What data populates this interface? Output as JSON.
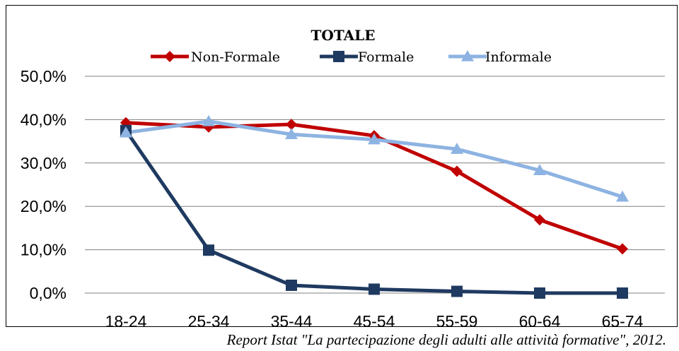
{
  "chart_data": {
    "type": "line",
    "title": "TOTALE",
    "categories": [
      "18-24",
      "25-34",
      "35-44",
      "45-54",
      "55-59",
      "60-64",
      "65-74"
    ],
    "yticks": [
      "0,0%",
      "10,0%",
      "20,0%",
      "30,0%",
      "40,0%",
      "50,0%"
    ],
    "ylim": [
      0,
      50
    ],
    "grid": true,
    "legend_position": "top",
    "series": [
      {
        "name": "Non-Formale",
        "color": "#c00000",
        "marker": "diamond",
        "values": [
          39.3,
          38.3,
          38.9,
          36.3,
          28.1,
          16.9,
          10.2
        ]
      },
      {
        "name": "Formale",
        "color": "#1f3a60",
        "marker": "square",
        "values": [
          37.5,
          9.9,
          1.8,
          0.9,
          0.4,
          0.0,
          0.0
        ]
      },
      {
        "name": "Informale",
        "color": "#8db3e2",
        "marker": "triangle",
        "values": [
          37.0,
          39.6,
          36.6,
          35.4,
          33.2,
          28.3,
          22.2
        ]
      }
    ]
  },
  "source": "Report Istat \"La partecipazione degli adulti alle attività formative\", 2012."
}
